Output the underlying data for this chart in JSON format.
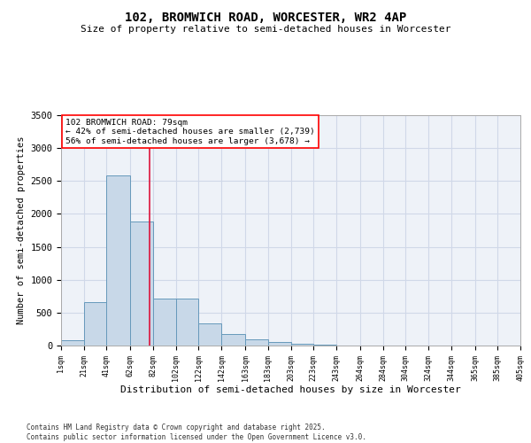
{
  "title_line1": "102, BROMWICH ROAD, WORCESTER, WR2 4AP",
  "title_line2": "Size of property relative to semi-detached houses in Worcester",
  "xlabel": "Distribution of semi-detached houses by size in Worcester",
  "ylabel": "Number of semi-detached properties",
  "footnote": "Contains HM Land Registry data © Crown copyright and database right 2025.\nContains public sector information licensed under the Open Government Licence v3.0.",
  "bar_left_edges": [
    1,
    21,
    41,
    62,
    82,
    102,
    122,
    142,
    163,
    183,
    203,
    223,
    243,
    264,
    284,
    304,
    324,
    344,
    365,
    385
  ],
  "bar_widths": [
    20,
    20,
    21,
    20,
    20,
    20,
    20,
    21,
    20,
    20,
    20,
    20,
    21,
    20,
    20,
    20,
    20,
    21,
    20,
    20
  ],
  "bar_heights": [
    80,
    660,
    2580,
    1880,
    720,
    720,
    340,
    170,
    90,
    50,
    25,
    10,
    5,
    2,
    1,
    0,
    0,
    0,
    0,
    0
  ],
  "bar_color": "#c8d8e8",
  "bar_edge_color": "#6699bb",
  "ylim": [
    0,
    3500
  ],
  "xlim": [
    1,
    405
  ],
  "xtick_labels": [
    "1sqm",
    "21sqm",
    "41sqm",
    "62sqm",
    "82sqm",
    "102sqm",
    "122sqm",
    "142sqm",
    "163sqm",
    "183sqm",
    "203sqm",
    "223sqm",
    "243sqm",
    "264sqm",
    "284sqm",
    "304sqm",
    "324sqm",
    "344sqm",
    "365sqm",
    "385sqm",
    "405sqm"
  ],
  "xtick_positions": [
    1,
    21,
    41,
    62,
    82,
    102,
    122,
    142,
    163,
    183,
    203,
    223,
    243,
    264,
    284,
    304,
    324,
    344,
    365,
    385,
    405
  ],
  "property_line_x": 79,
  "annotation_title": "102 BROMWICH ROAD: 79sqm",
  "annotation_line2": "← 42% of semi-detached houses are smaller (2,739)",
  "annotation_line3": "56% of semi-detached houses are larger (3,678) →",
  "grid_color": "#d0d8e8",
  "bg_color": "#eef2f8",
  "ytick_values": [
    0,
    500,
    1000,
    1500,
    2000,
    2500,
    3000,
    3500
  ]
}
